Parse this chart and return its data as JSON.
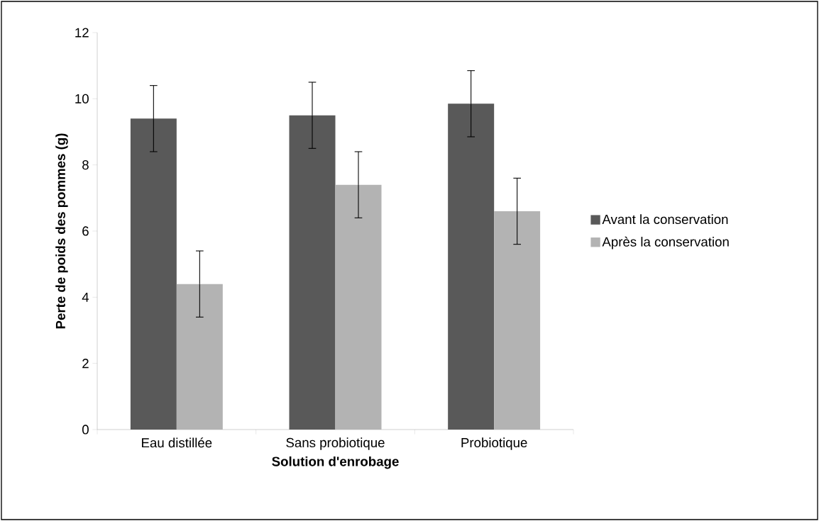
{
  "chart_data": {
    "type": "bar",
    "xlabel": "Solution d'enrobage",
    "ylabel": "Perte de poids des pommes (g)",
    "categories": [
      "Eau distillée",
      "Sans probiotique",
      "Probiotique"
    ],
    "series": [
      {
        "name": "Avant la conservation",
        "color": "#595959",
        "values": [
          9.4,
          9.5,
          9.85
        ],
        "errors": [
          1.0,
          1.0,
          1.0
        ]
      },
      {
        "name": "Après la conservation",
        "color": "#b3b3b3",
        "values": [
          4.4,
          7.4,
          6.6
        ],
        "errors": [
          1.0,
          1.0,
          1.0
        ]
      }
    ],
    "ylim": [
      0,
      12
    ],
    "yticks": [
      0,
      2,
      4,
      6,
      8,
      10,
      12
    ],
    "legend": "right"
  }
}
